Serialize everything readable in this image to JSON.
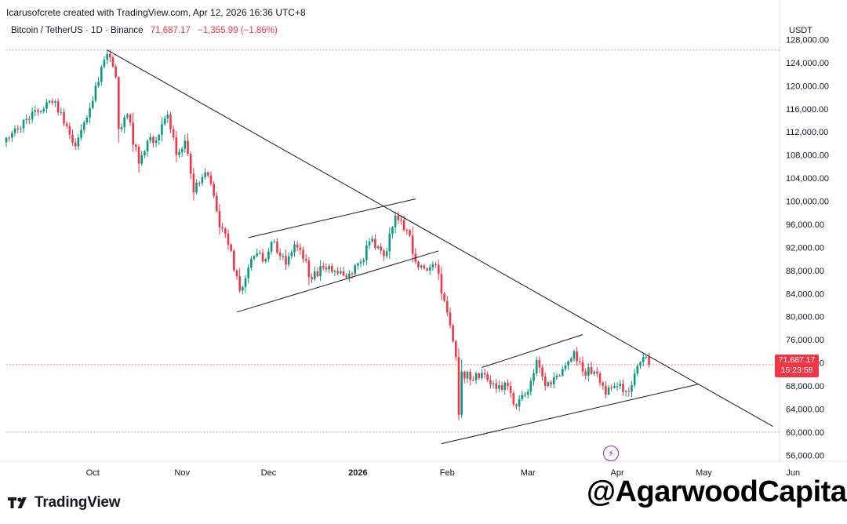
{
  "header": {
    "caption": "Icarusofcrete created with TradingView.com, Apr 12, 2026 16:36 UTC+8",
    "symbol": "Bitcoin / TetherUS · 1D · Binance",
    "last_price": "71,687.17",
    "change": "−1,355.99 (−1.86%)",
    "currency": "USDT"
  },
  "price_tag": {
    "price": "71,687.17",
    "countdown": "15:23:58"
  },
  "brand": {
    "name": "TradingView",
    "icon": "tradingview-logo-icon"
  },
  "watermark": "@AgarwoodCapital",
  "colors": {
    "up": "#089981",
    "down": "#f23645",
    "trendline": "#131722",
    "grid_dotted": "#9598a1"
  },
  "chart_data": {
    "type": "candlestick",
    "price_axis": {
      "ticks": [
        128000,
        124000,
        120000,
        116000,
        112000,
        108000,
        104000,
        100000,
        96000,
        92000,
        88000,
        84000,
        80000,
        76000,
        72000,
        68000,
        64000,
        60000,
        56000
      ],
      "tick_labels": [
        "128,000.00",
        "124,000.00",
        "120,000.00",
        "116,000.00",
        "112,000.00",
        "108,000.00",
        "104,000.00",
        "100,000.00",
        "96,000.00",
        "92,000.00",
        "88,000.00",
        "84,000.00",
        "80,000.00",
        "76,000.00",
        "72,000.00",
        "68,000.00",
        "64,000.00",
        "60,000.00",
        "56,000.00"
      ],
      "range": [
        53600,
        133500
      ],
      "position": "right"
    },
    "time_axis": {
      "labels": [
        "Oct",
        "Nov",
        "Dec",
        "2026",
        "Feb",
        "Mar",
        "Apr",
        "May",
        "Jun"
      ],
      "dates": [
        "2025-10-01",
        "2025-11-01",
        "2025-12-01",
        "2026-01-01",
        "2026-02-01",
        "2026-03-01",
        "2026-04-01",
        "2026-05-01",
        "2026-06-01"
      ]
    },
    "reference_lines": [
      {
        "price": 126200,
        "style": "dotted"
      },
      {
        "price": 60000,
        "style": "dotted"
      },
      {
        "price": 71687.17,
        "style": "dotted-red"
      }
    ],
    "close_path": [
      [
        "2025-09-01",
        111000
      ],
      [
        "2025-09-05",
        112500
      ],
      [
        "2025-09-10",
        115500
      ],
      [
        "2025-09-14",
        116000
      ],
      [
        "2025-09-18",
        117300
      ],
      [
        "2025-09-22",
        113000
      ],
      [
        "2025-09-25",
        109500
      ],
      [
        "2025-09-29",
        114500
      ],
      [
        "2025-10-02",
        120000
      ],
      [
        "2025-10-05",
        124500
      ],
      [
        "2025-10-06",
        125500
      ],
      [
        "2025-10-09",
        121500
      ],
      [
        "2025-10-10",
        112500
      ],
      [
        "2025-10-13",
        115000
      ],
      [
        "2025-10-17",
        106500
      ],
      [
        "2025-10-20",
        110500
      ],
      [
        "2025-10-24",
        111500
      ],
      [
        "2025-10-27",
        115000
      ],
      [
        "2025-10-30",
        108000
      ],
      [
        "2025-11-02",
        110500
      ],
      [
        "2025-11-05",
        101500
      ],
      [
        "2025-11-09",
        105000
      ],
      [
        "2025-11-11",
        103000
      ],
      [
        "2025-11-14",
        95500
      ],
      [
        "2025-11-17",
        92500
      ],
      [
        "2025-11-20",
        87000
      ],
      [
        "2025-11-21",
        84500
      ],
      [
        "2025-11-24",
        88500
      ],
      [
        "2025-11-26",
        90500
      ],
      [
        "2025-11-30",
        90000
      ],
      [
        "2025-12-03",
        93000
      ],
      [
        "2025-12-07",
        89000
      ],
      [
        "2025-12-10",
        92500
      ],
      [
        "2025-12-13",
        90000
      ],
      [
        "2025-12-16",
        86500
      ],
      [
        "2025-12-20",
        88500
      ],
      [
        "2025-12-25",
        87500
      ],
      [
        "2025-12-29",
        87500
      ],
      [
        "2026-01-02",
        89500
      ],
      [
        "2026-01-06",
        93500
      ],
      [
        "2026-01-10",
        90500
      ],
      [
        "2026-01-13",
        95500
      ],
      [
        "2026-01-14",
        97500
      ],
      [
        "2026-01-18",
        95000
      ],
      [
        "2026-01-21",
        89500
      ],
      [
        "2026-01-25",
        88000
      ],
      [
        "2026-01-28",
        89000
      ],
      [
        "2026-01-30",
        84000
      ],
      [
        "2026-02-02",
        78500
      ],
      [
        "2026-02-04",
        73000
      ],
      [
        "2026-02-05",
        63000
      ],
      [
        "2026-02-06",
        70500
      ],
      [
        "2026-02-10",
        69000
      ],
      [
        "2026-02-14",
        70000
      ],
      [
        "2026-02-18",
        67500
      ],
      [
        "2026-02-22",
        68000
      ],
      [
        "2026-02-25",
        64500
      ],
      [
        "2026-03-01",
        67000
      ],
      [
        "2026-03-04",
        72500
      ],
      [
        "2026-03-07",
        68000
      ],
      [
        "2026-03-10",
        69500
      ],
      [
        "2026-03-14",
        71500
      ],
      [
        "2026-03-17",
        74000
      ],
      [
        "2026-03-20",
        70500
      ],
      [
        "2026-03-24",
        70500
      ],
      [
        "2026-03-28",
        66500
      ],
      [
        "2026-04-01",
        68000
      ],
      [
        "2026-04-05",
        67000
      ],
      [
        "2026-04-08",
        71500
      ],
      [
        "2026-04-10",
        73000
      ],
      [
        "2026-04-11",
        73043.16
      ],
      [
        "2026-04-12",
        71687.17
      ]
    ],
    "trendlines": [
      {
        "from": [
          "2025-10-06",
          126200
        ],
        "to": [
          "2026-05-25",
          61000
        ]
      },
      {
        "from": [
          "2025-11-20",
          80800
        ],
        "to": [
          "2026-01-29",
          91400
        ]
      },
      {
        "from": [
          "2025-11-24",
          93700
        ],
        "to": [
          "2026-01-21",
          100400
        ]
      },
      {
        "from": [
          "2026-01-30",
          58000
        ],
        "to": [
          "2026-04-29",
          68300
        ]
      },
      {
        "from": [
          "2026-02-13",
          71200
        ],
        "to": [
          "2026-03-20",
          76900
        ]
      }
    ],
    "current_price": 71687.17
  }
}
